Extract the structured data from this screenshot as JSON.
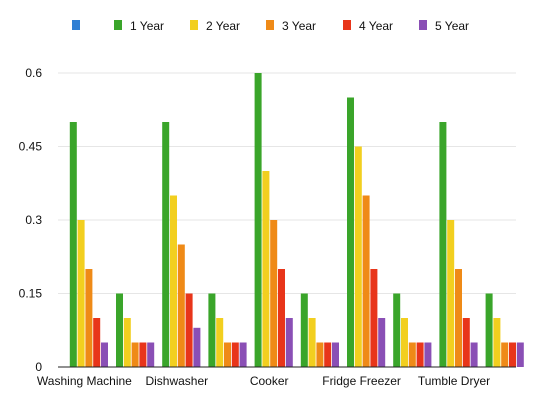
{
  "chart_data": {
    "type": "bar",
    "title": "",
    "xlabel": "",
    "ylabel": "",
    "ylim": [
      0,
      0.6
    ],
    "yticks": [
      0,
      0.15,
      0.3,
      0.45,
      0.6
    ],
    "ytick_labels": [
      "0",
      "0.15",
      "0.3",
      "0.45",
      "0.6"
    ],
    "grid": true,
    "legend_position": "top",
    "categories": [
      "Washing Machine",
      "",
      "Dishwasher",
      "",
      "Cooker",
      "",
      "Fridge Freezer",
      "",
      "Tumble Dryer",
      ""
    ],
    "series": [
      {
        "name": "",
        "color": "#2f7fd4",
        "values": [
          0,
          0,
          0,
          0,
          0,
          0,
          0,
          0,
          0,
          0
        ]
      },
      {
        "name": "1 Year",
        "color": "#3aa52a",
        "values": [
          0.5,
          0.15,
          0.5,
          0.15,
          0.6,
          0.15,
          0.55,
          0.15,
          0.5,
          0.15
        ]
      },
      {
        "name": "2 Year",
        "color": "#f2cf1f",
        "values": [
          0.3,
          0.1,
          0.35,
          0.1,
          0.4,
          0.1,
          0.45,
          0.1,
          0.3,
          0.1
        ]
      },
      {
        "name": "3 Year",
        "color": "#ef8a17",
        "values": [
          0.2,
          0.05,
          0.25,
          0.05,
          0.3,
          0.05,
          0.35,
          0.05,
          0.2,
          0.05
        ]
      },
      {
        "name": "4 Year",
        "color": "#e8351a",
        "values": [
          0.1,
          0.05,
          0.15,
          0.05,
          0.2,
          0.05,
          0.2,
          0.05,
          0.1,
          0.05
        ]
      },
      {
        "name": "5 Year",
        "color": "#8a4fb5",
        "values": [
          0.05,
          0.05,
          0.08,
          0.05,
          0.1,
          0.05,
          0.1,
          0.05,
          0.05,
          0.05
        ]
      }
    ]
  }
}
